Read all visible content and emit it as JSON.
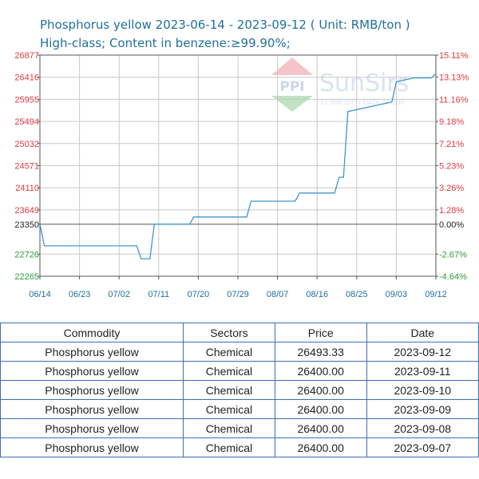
{
  "header": {
    "title": "Phosphorus yellow 2023-06-14 - 2023-09-12    ( Unit: RMB/ton )",
    "subtitle": "High-class; Content in benzene:≥99.90%;"
  },
  "watermark": {
    "brand": "SunSirs",
    "tagline": "COMMODITY DATA GROUP",
    "logo_letters": "PPI"
  },
  "colors": {
    "line": "#3f97c9",
    "positive": "#e0393e",
    "negative": "#2e9c3a",
    "axis": "#555555",
    "grid": "#c8c8c8",
    "text_blue": "#1f6f9c"
  },
  "chart_data": {
    "type": "line",
    "x_labels": [
      "06/14",
      "06/23",
      "07/02",
      "07/11",
      "07/20",
      "07/29",
      "08/07",
      "08/16",
      "08/25",
      "09/03",
      "09/12"
    ],
    "left_ticks": [
      "26877",
      "26416",
      "25955",
      "25494",
      "25032",
      "24571",
      "24110",
      "23649",
      "23350",
      "22726",
      "22265"
    ],
    "right_ticks": [
      "15.11%",
      "13.13%",
      "11.16%",
      "9.18%",
      "7.21%",
      "5.23%",
      "3.26%",
      "1.28%",
      "0.00%",
      "-2.67%",
      "-4.64%"
    ],
    "ylim": [
      22265,
      26877
    ],
    "baseline": 23350,
    "grid": true,
    "x": [
      "2023-06-14",
      "2023-06-15",
      "2023-06-16",
      "2023-07-06",
      "2023-07-07",
      "2023-07-09",
      "2023-07-10",
      "2023-07-18",
      "2023-07-19",
      "2023-07-31",
      "2023-08-01",
      "2023-08-11",
      "2023-08-12",
      "2023-08-20",
      "2023-08-21",
      "2023-08-22",
      "2023-08-23",
      "2023-09-02",
      "2023-09-03",
      "2023-09-07",
      "2023-09-11",
      "2023-09-12"
    ],
    "series": [
      {
        "values": [
          23350,
          22900,
          22900,
          22900,
          22630,
          22630,
          23350,
          23350,
          23500,
          23500,
          23830,
          23830,
          24000,
          24000,
          24330,
          24330,
          25700,
          25900,
          26320,
          26400,
          26400,
          26493.33
        ]
      }
    ]
  },
  "table": {
    "columns": [
      "Commodity",
      "Sectors",
      "Price",
      "Date"
    ],
    "rows": [
      [
        "Phosphorus yellow",
        "Chemical",
        "26493.33",
        "2023-09-12"
      ],
      [
        "Phosphorus yellow",
        "Chemical",
        "26400.00",
        "2023-09-11"
      ],
      [
        "Phosphorus yellow",
        "Chemical",
        "26400.00",
        "2023-09-10"
      ],
      [
        "Phosphorus yellow",
        "Chemical",
        "26400.00",
        "2023-09-09"
      ],
      [
        "Phosphorus yellow",
        "Chemical",
        "26400.00",
        "2023-09-08"
      ],
      [
        "Phosphorus yellow",
        "Chemical",
        "26400.00",
        "2023-09-07"
      ]
    ]
  }
}
